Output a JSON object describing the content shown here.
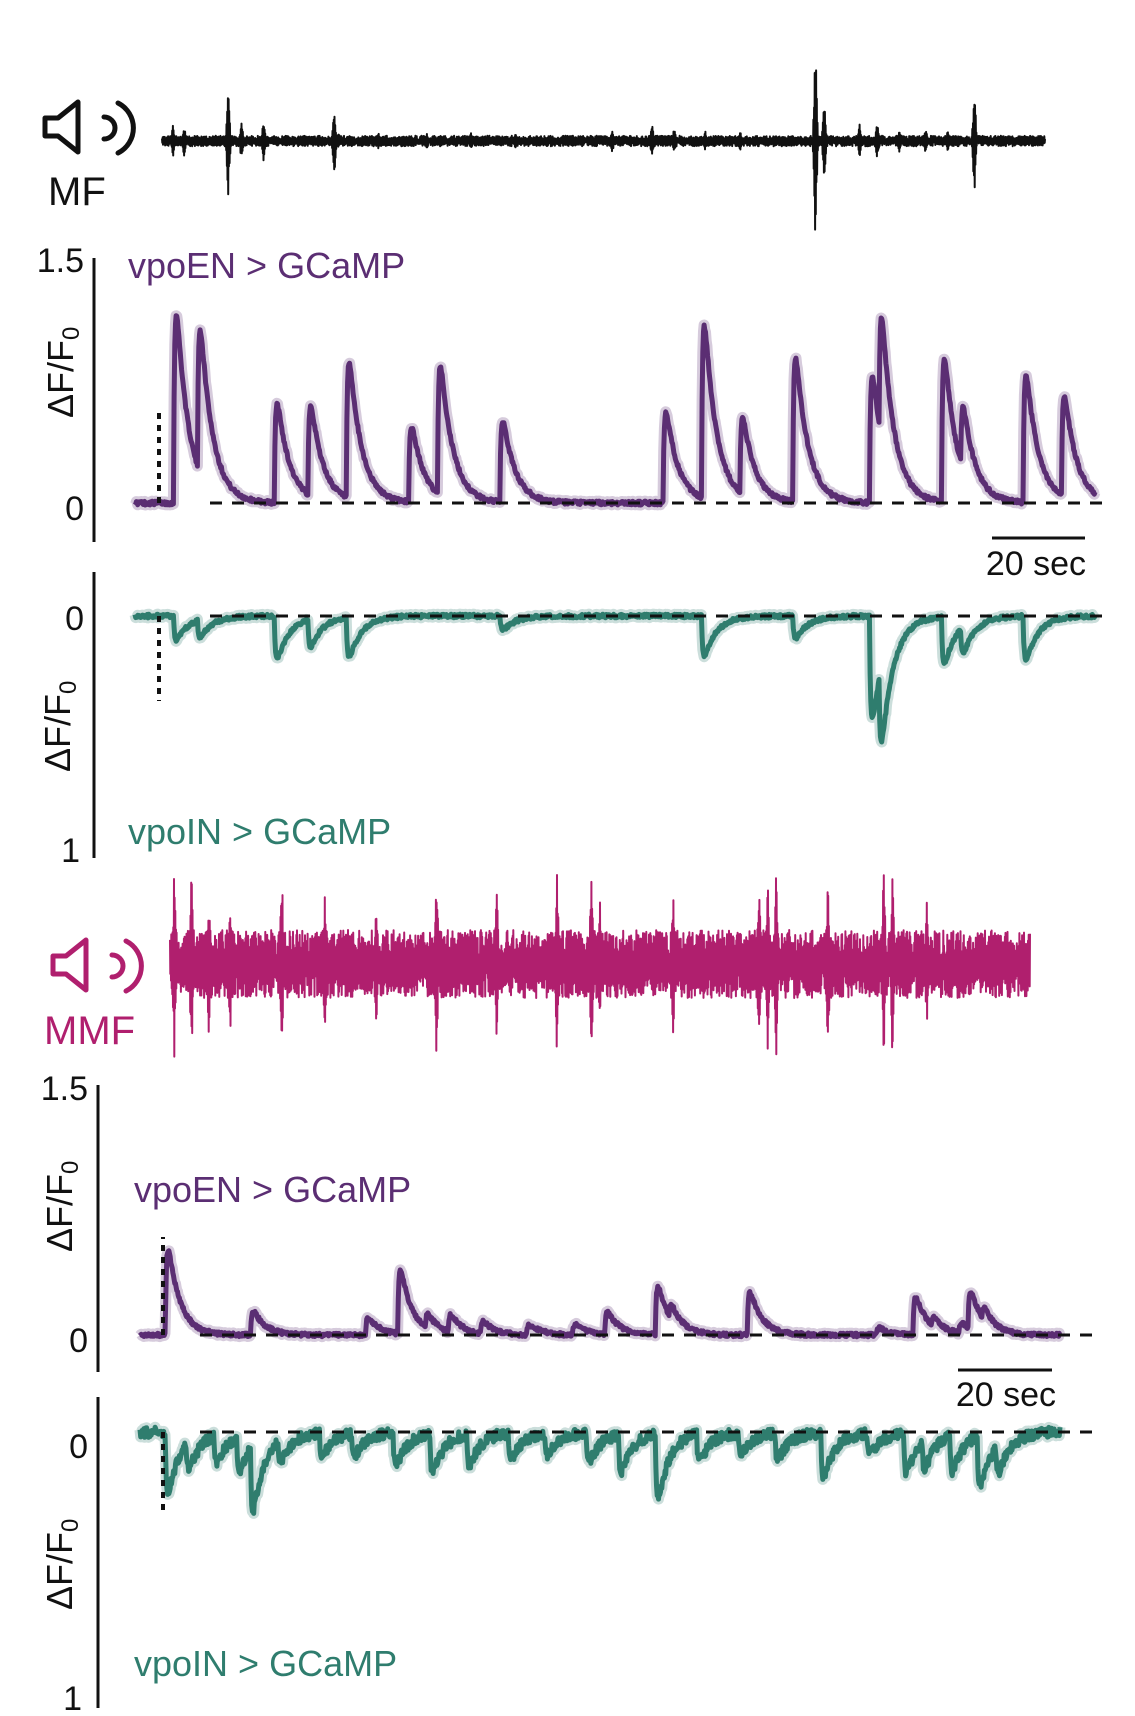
{
  "colors": {
    "mf": "#111111",
    "mmf": "#b01f6e",
    "vpoEN": "#5b2e73",
    "vpoIN": "#2f7d6e",
    "axis": "#111111"
  },
  "icons": [
    "speaker-icon",
    "sound-waves-icon"
  ],
  "mf": {
    "label": "MF",
    "icon": "speaker-icon",
    "events": [
      {
        "t": 2.5,
        "amp": 0.3
      },
      {
        "t": 5,
        "amp": 0.28
      },
      {
        "t": 15,
        "amp": 1.0
      },
      {
        "t": 18,
        "amp": 0.35
      },
      {
        "t": 23,
        "amp": 0.4
      },
      {
        "t": 39,
        "amp": 0.65
      },
      {
        "t": 40,
        "amp": 0.15
      },
      {
        "t": 49,
        "amp": 0.15
      },
      {
        "t": 60,
        "amp": 0.15
      },
      {
        "t": 70,
        "amp": 0.15
      },
      {
        "t": 80,
        "amp": 0.15
      },
      {
        "t": 93,
        "amp": 0.12
      },
      {
        "t": 102,
        "amp": 0.22
      },
      {
        "t": 111,
        "amp": 0.3
      },
      {
        "t": 116,
        "amp": 0.25
      },
      {
        "t": 123,
        "amp": 0.2
      },
      {
        "t": 131,
        "amp": 0.18
      },
      {
        "t": 148,
        "amp": 1.9
      },
      {
        "t": 150,
        "amp": 0.75
      },
      {
        "t": 158,
        "amp": 0.3
      },
      {
        "t": 162,
        "amp": 0.35
      },
      {
        "t": 167,
        "amp": 0.2
      },
      {
        "t": 173,
        "amp": 0.25
      },
      {
        "t": 178,
        "amp": 0.2
      },
      {
        "t": 184,
        "amp": 1.0
      }
    ]
  },
  "mmf": {
    "label": "MMF",
    "icon": "speaker-icon",
    "events": [
      {
        "t": 1,
        "amp": 0.95
      },
      {
        "t": 5,
        "amp": 0.95
      },
      {
        "t": 9,
        "amp": 0.7
      },
      {
        "t": 14,
        "amp": 0.7
      },
      {
        "t": 26,
        "amp": 0.95
      },
      {
        "t": 36,
        "amp": 0.7
      },
      {
        "t": 48,
        "amp": 0.6
      },
      {
        "t": 62,
        "amp": 0.95
      },
      {
        "t": 76,
        "amp": 0.8
      },
      {
        "t": 90,
        "amp": 0.95
      },
      {
        "t": 98,
        "amp": 0.95
      },
      {
        "t": 100,
        "amp": 0.6
      },
      {
        "t": 117,
        "amp": 0.7
      },
      {
        "t": 137,
        "amp": 0.95
      },
      {
        "t": 139,
        "amp": 0.95
      },
      {
        "t": 141,
        "amp": 0.95
      },
      {
        "t": 153,
        "amp": 0.95
      },
      {
        "t": 166,
        "amp": 0.95
      },
      {
        "t": 168,
        "amp": 0.95
      },
      {
        "t": 176,
        "amp": 0.6
      }
    ]
  },
  "chart_data": [
    {
      "type": "line",
      "panel": "mf-vpoEN",
      "title": "vpoEN > GCaMP",
      "ylabel": "ΔF/F",
      "ylabel_sub": "0",
      "ylim": [
        0,
        1.5
      ],
      "yticks": [
        "0",
        "1.5"
      ],
      "xlim": [
        0,
        200
      ],
      "stimulus_onset": 5,
      "scale_bar": {
        "length_sec": 20,
        "label": "20 sec"
      },
      "baseline": 0.0,
      "transients": [
        {
          "t": 8,
          "amp": 1.05
        },
        {
          "t": 13,
          "amp": 0.8
        },
        {
          "t": 29,
          "amp": 0.55
        },
        {
          "t": 36,
          "amp": 0.5
        },
        {
          "t": 44,
          "amp": 0.75
        },
        {
          "t": 57,
          "amp": 0.42
        },
        {
          "t": 63,
          "amp": 0.72
        },
        {
          "t": 76,
          "amp": 0.45
        },
        {
          "t": 110,
          "amp": 0.5
        },
        {
          "t": 118,
          "amp": 0.96
        },
        {
          "t": 126,
          "amp": 0.42
        },
        {
          "t": 137,
          "amp": 0.8
        },
        {
          "t": 153,
          "amp": 0.71
        },
        {
          "t": 155,
          "amp": 0.66
        },
        {
          "t": 168,
          "amp": 0.8
        },
        {
          "t": 172,
          "amp": 0.34
        },
        {
          "t": 185,
          "amp": 0.71
        },
        {
          "t": 193,
          "amp": 0.56
        }
      ]
    },
    {
      "type": "line",
      "panel": "mf-vpoIN",
      "title": "vpoIN > GCaMP",
      "ylabel": "ΔF/F",
      "ylabel_sub": "0",
      "ylim": [
        0,
        1
      ],
      "yticks": [
        "0",
        "1"
      ],
      "inverted": true,
      "xlim": [
        0,
        200
      ],
      "stimulus_onset": 5,
      "baseline": 0.0,
      "transients": [
        {
          "t": 8,
          "amp": 0.14
        },
        {
          "t": 13,
          "amp": 0.1
        },
        {
          "t": 29,
          "amp": 0.25
        },
        {
          "t": 36,
          "amp": 0.16
        },
        {
          "t": 44,
          "amp": 0.23
        },
        {
          "t": 76,
          "amp": 0.08
        },
        {
          "t": 118,
          "amp": 0.23
        },
        {
          "t": 137,
          "amp": 0.13
        },
        {
          "t": 153,
          "amp": 0.6
        },
        {
          "t": 155,
          "amp": 0.43
        },
        {
          "t": 168,
          "amp": 0.27
        },
        {
          "t": 172,
          "amp": 0.15
        },
        {
          "t": 185,
          "amp": 0.25
        }
      ]
    },
    {
      "type": "line",
      "panel": "mmf-vpoEN",
      "title": "vpoEN > GCaMP",
      "ylabel": "ΔF/F",
      "ylabel_sub": "0",
      "ylim": [
        0,
        1.5
      ],
      "yticks": [
        "0",
        "1.5"
      ],
      "xlim": [
        0,
        200
      ],
      "stimulus_onset": 5,
      "scale_bar": {
        "length_sec": 20,
        "label": "20 sec"
      },
      "baseline": 0.0,
      "transients": [
        {
          "t": 5.5,
          "amp": 0.5
        },
        {
          "t": 24,
          "amp": 0.14
        },
        {
          "t": 49,
          "amp": 0.1
        },
        {
          "t": 56,
          "amp": 0.37
        },
        {
          "t": 62,
          "amp": 0.08
        },
        {
          "t": 67,
          "amp": 0.1
        },
        {
          "t": 74,
          "amp": 0.07
        },
        {
          "t": 84,
          "amp": 0.06
        },
        {
          "t": 94,
          "amp": 0.06
        },
        {
          "t": 101,
          "amp": 0.13
        },
        {
          "t": 112,
          "amp": 0.28
        },
        {
          "t": 115,
          "amp": 0.08
        },
        {
          "t": 132,
          "amp": 0.25
        },
        {
          "t": 160,
          "amp": 0.04
        },
        {
          "t": 168,
          "amp": 0.22
        },
        {
          "t": 172,
          "amp": 0.05
        },
        {
          "t": 178,
          "amp": 0.06
        },
        {
          "t": 180,
          "amp": 0.22
        },
        {
          "t": 183,
          "amp": 0.07
        }
      ]
    },
    {
      "type": "line",
      "panel": "mmf-vpoIN",
      "title": "vpoIN > GCaMP",
      "ylabel": "ΔF/F",
      "ylabel_sub": "0",
      "ylim": [
        0,
        1
      ],
      "yticks": [
        "0",
        "1"
      ],
      "inverted": true,
      "xlim": [
        0,
        200
      ],
      "stimulus_onset": 5,
      "baseline": 0.0,
      "transients": [
        {
          "t": 5.5,
          "amp": 0.27
        },
        {
          "t": 10,
          "amp": 0.12
        },
        {
          "t": 16,
          "amp": 0.12
        },
        {
          "t": 21,
          "amp": 0.16
        },
        {
          "t": 24,
          "amp": 0.3
        },
        {
          "t": 30,
          "amp": 0.1
        },
        {
          "t": 39,
          "amp": 0.1
        },
        {
          "t": 46,
          "amp": 0.1
        },
        {
          "t": 55,
          "amp": 0.15
        },
        {
          "t": 63,
          "amp": 0.18
        },
        {
          "t": 71,
          "amp": 0.14
        },
        {
          "t": 80,
          "amp": 0.12
        },
        {
          "t": 88,
          "amp": 0.1
        },
        {
          "t": 97,
          "amp": 0.13
        },
        {
          "t": 104,
          "amp": 0.17
        },
        {
          "t": 112,
          "amp": 0.29
        },
        {
          "t": 121,
          "amp": 0.12
        },
        {
          "t": 130,
          "amp": 0.1
        },
        {
          "t": 138,
          "amp": 0.12
        },
        {
          "t": 148,
          "amp": 0.2
        },
        {
          "t": 158,
          "amp": 0.1
        },
        {
          "t": 166,
          "amp": 0.18
        },
        {
          "t": 170,
          "amp": 0.12
        },
        {
          "t": 176,
          "amp": 0.16
        },
        {
          "t": 182,
          "amp": 0.24
        },
        {
          "t": 186,
          "amp": 0.13
        }
      ]
    }
  ]
}
